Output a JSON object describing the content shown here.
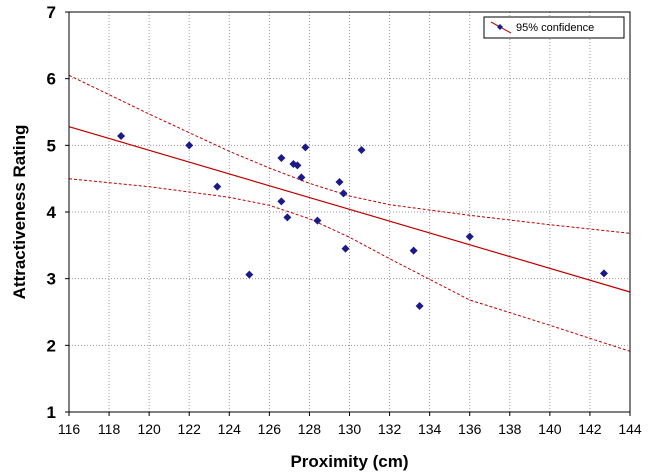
{
  "chart_data": {
    "type": "scatter",
    "title": "",
    "xlabel": "Proximity (cm)",
    "ylabel": "Attractiveness Rating",
    "xlim": [
      116,
      144
    ],
    "ylim": [
      1,
      7
    ],
    "xticks": [
      116,
      118,
      120,
      122,
      124,
      126,
      128,
      130,
      132,
      134,
      136,
      138,
      140,
      142,
      144
    ],
    "yticks": [
      1,
      2,
      3,
      4,
      5,
      6,
      7
    ],
    "grid": true,
    "legend_position": "top-right",
    "legend_label": "95% confidence",
    "marker_color": "#1a1a8c",
    "line_color": "#c00000",
    "points": [
      {
        "x": 118.6,
        "y": 5.14
      },
      {
        "x": 122.0,
        "y": 5.0
      },
      {
        "x": 123.4,
        "y": 4.38
      },
      {
        "x": 125.0,
        "y": 3.06
      },
      {
        "x": 126.6,
        "y": 4.81
      },
      {
        "x": 126.6,
        "y": 4.16
      },
      {
        "x": 126.9,
        "y": 3.92
      },
      {
        "x": 127.2,
        "y": 4.72
      },
      {
        "x": 127.4,
        "y": 4.7
      },
      {
        "x": 127.6,
        "y": 4.52
      },
      {
        "x": 127.8,
        "y": 4.97
      },
      {
        "x": 128.4,
        "y": 3.87
      },
      {
        "x": 129.5,
        "y": 4.45
      },
      {
        "x": 129.7,
        "y": 4.28
      },
      {
        "x": 129.8,
        "y": 3.45
      },
      {
        "x": 130.6,
        "y": 4.93
      },
      {
        "x": 133.2,
        "y": 3.42
      },
      {
        "x": 133.5,
        "y": 2.59
      },
      {
        "x": 136.0,
        "y": 3.63
      },
      {
        "x": 142.7,
        "y": 3.08
      }
    ],
    "regression": {
      "x": [
        116,
        144
      ],
      "y": [
        5.28,
        2.8
      ]
    },
    "ci_upper": {
      "x": [
        116,
        120,
        124,
        126,
        128,
        130,
        132,
        136,
        140,
        144
      ],
      "y": [
        6.05,
        5.47,
        4.91,
        4.66,
        4.43,
        4.24,
        4.11,
        3.95,
        3.81,
        3.68
      ]
    },
    "ci_lower": {
      "x": [
        116,
        120,
        124,
        126,
        128,
        130,
        132,
        136,
        140,
        144
      ],
      "y": [
        4.5,
        4.38,
        4.22,
        4.1,
        3.9,
        3.62,
        3.3,
        2.68,
        2.3,
        1.91
      ]
    }
  }
}
